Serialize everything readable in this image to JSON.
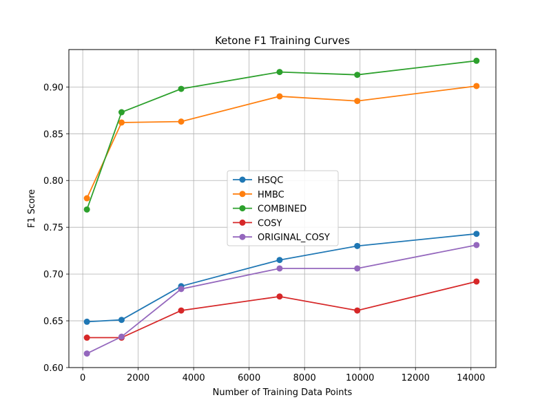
{
  "chart_data": {
    "type": "line",
    "title": "Ketone F1 Training Curves",
    "xlabel": "Number of Training Data Points",
    "ylabel": "F1 Score",
    "xlim": [
      -500,
      14900
    ],
    "ylim": [
      0.6,
      0.94
    ],
    "xticks": [
      0,
      2000,
      4000,
      6000,
      8000,
      10000,
      12000,
      14000
    ],
    "xtick_labels": [
      "0",
      "2000",
      "4000",
      "6000",
      "8000",
      "10000",
      "12000",
      "14000"
    ],
    "yticks": [
      0.6,
      0.65,
      0.7,
      0.75,
      0.8,
      0.85,
      0.9
    ],
    "ytick_labels": [
      "0.60",
      "0.65",
      "0.70",
      "0.75",
      "0.80",
      "0.85",
      "0.90"
    ],
    "grid": true,
    "legend_position": "center",
    "x": [
      150,
      1400,
      3550,
      7100,
      9900,
      14200
    ],
    "series": [
      {
        "name": "HSQC",
        "color": "#1f77b4",
        "values": [
          0.649,
          0.651,
          0.687,
          0.715,
          0.73,
          0.743
        ]
      },
      {
        "name": "HMBC",
        "color": "#ff7f0e",
        "values": [
          0.781,
          0.862,
          0.863,
          0.89,
          0.885,
          0.901
        ]
      },
      {
        "name": "COMBINED",
        "color": "#2ca02c",
        "values": [
          0.769,
          0.873,
          0.898,
          0.916,
          0.913,
          0.928
        ]
      },
      {
        "name": "COSY",
        "color": "#d62728",
        "values": [
          0.632,
          0.632,
          0.661,
          0.676,
          0.661,
          0.692
        ]
      },
      {
        "name": "ORIGINAL_COSY",
        "color": "#9467bd",
        "values": [
          0.615,
          0.633,
          0.684,
          0.706,
          0.706,
          0.731
        ]
      }
    ]
  }
}
